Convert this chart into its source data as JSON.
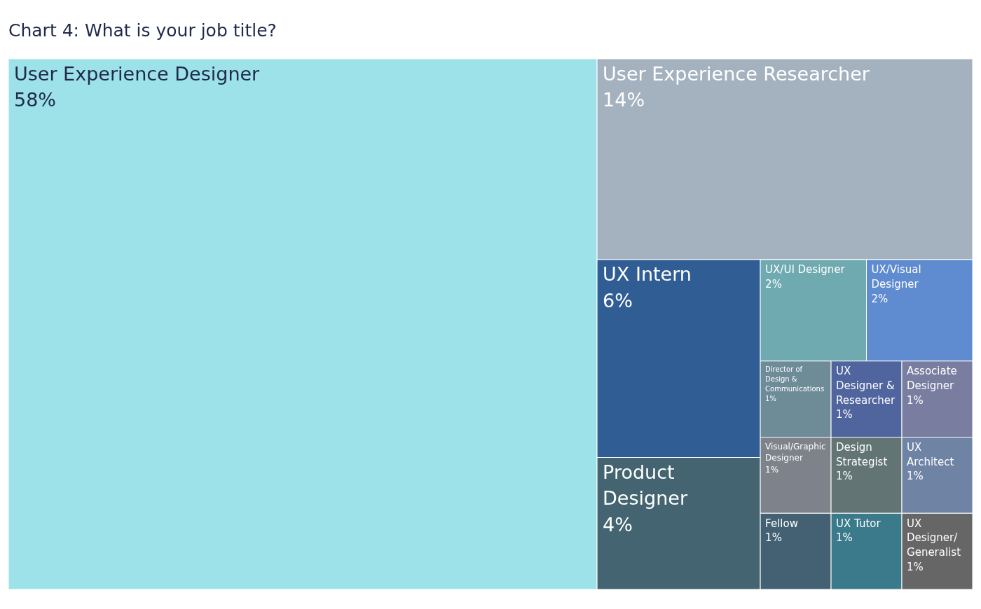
{
  "chart_data": {
    "type": "other",
    "title": "Chart 4: What is your job title?",
    "categories": [
      "User Experience Designer",
      "User Experience Researcher",
      "UX Intern",
      "Product Designer",
      "UX/UI Designer",
      "UX/Visual Designer",
      "Director of Design & Communications",
      "UX Designer & Researcher",
      "Associate Designer",
      "Visual/Graphic Designer",
      "Fellow",
      "Design Strategist",
      "UX Architect",
      "UX Tutor",
      "UX Designer/ Generalist"
    ],
    "values": [
      58,
      14,
      6,
      4,
      2,
      2,
      1,
      1,
      1,
      1,
      1,
      1,
      1,
      1,
      1
    ],
    "value_labels": [
      "58%",
      "14%",
      "6%",
      "4%",
      "2%",
      "2%",
      "1%",
      "1%",
      "1%",
      "1%",
      "1%",
      "1%",
      "1%",
      "1%",
      "1%"
    ],
    "colors": [
      "#9de1e9",
      "#a4b2c0",
      "#2f5d94",
      "#436470",
      "#70aab1",
      "#5f8bd0",
      "#6e8b98",
      "#50649d",
      "#797ea0",
      "#7e828a",
      "#436172",
      "#637475",
      "#6f83a4",
      "#3a7a8a",
      "#666666"
    ]
  }
}
